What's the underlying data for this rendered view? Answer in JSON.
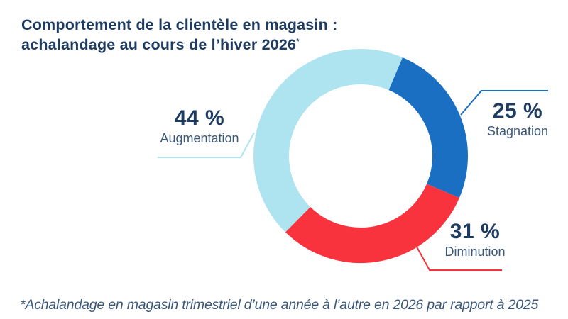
{
  "title": {
    "line1": "Comportement de la clientèle en magasin :",
    "line2": "achalandage au cours de l’hiver 2026",
    "footnote_marker": "*"
  },
  "footnote": "*Achalandage en magasin trimestriel d’une année à l’autre en 2026 par rapport à 2025",
  "colors": {
    "background": "#ffffff",
    "title_text": "#1e3c61",
    "value_text": "#1e3c61",
    "category_text": "#3a5878",
    "footnote_text": "#3a577a"
  },
  "chart_data": {
    "type": "pie",
    "subtype": "donut",
    "title": "Comportement de la clientèle en magasin : achalandage au cours de l’hiver 2026*",
    "unit": "%",
    "direction": "clockwise",
    "start_angle_deg": 23,
    "legend_position": "callout-labels",
    "segments": [
      {
        "label": "Stagnation",
        "value": 25,
        "display": "25 %",
        "color": "#1a6fc2"
      },
      {
        "label": "Diminution",
        "value": 31,
        "display": "31 %",
        "color": "#f9333e"
      },
      {
        "label": "Augmentation",
        "value": 44,
        "display": "44 %",
        "color": "#aee3f0"
      }
    ]
  }
}
